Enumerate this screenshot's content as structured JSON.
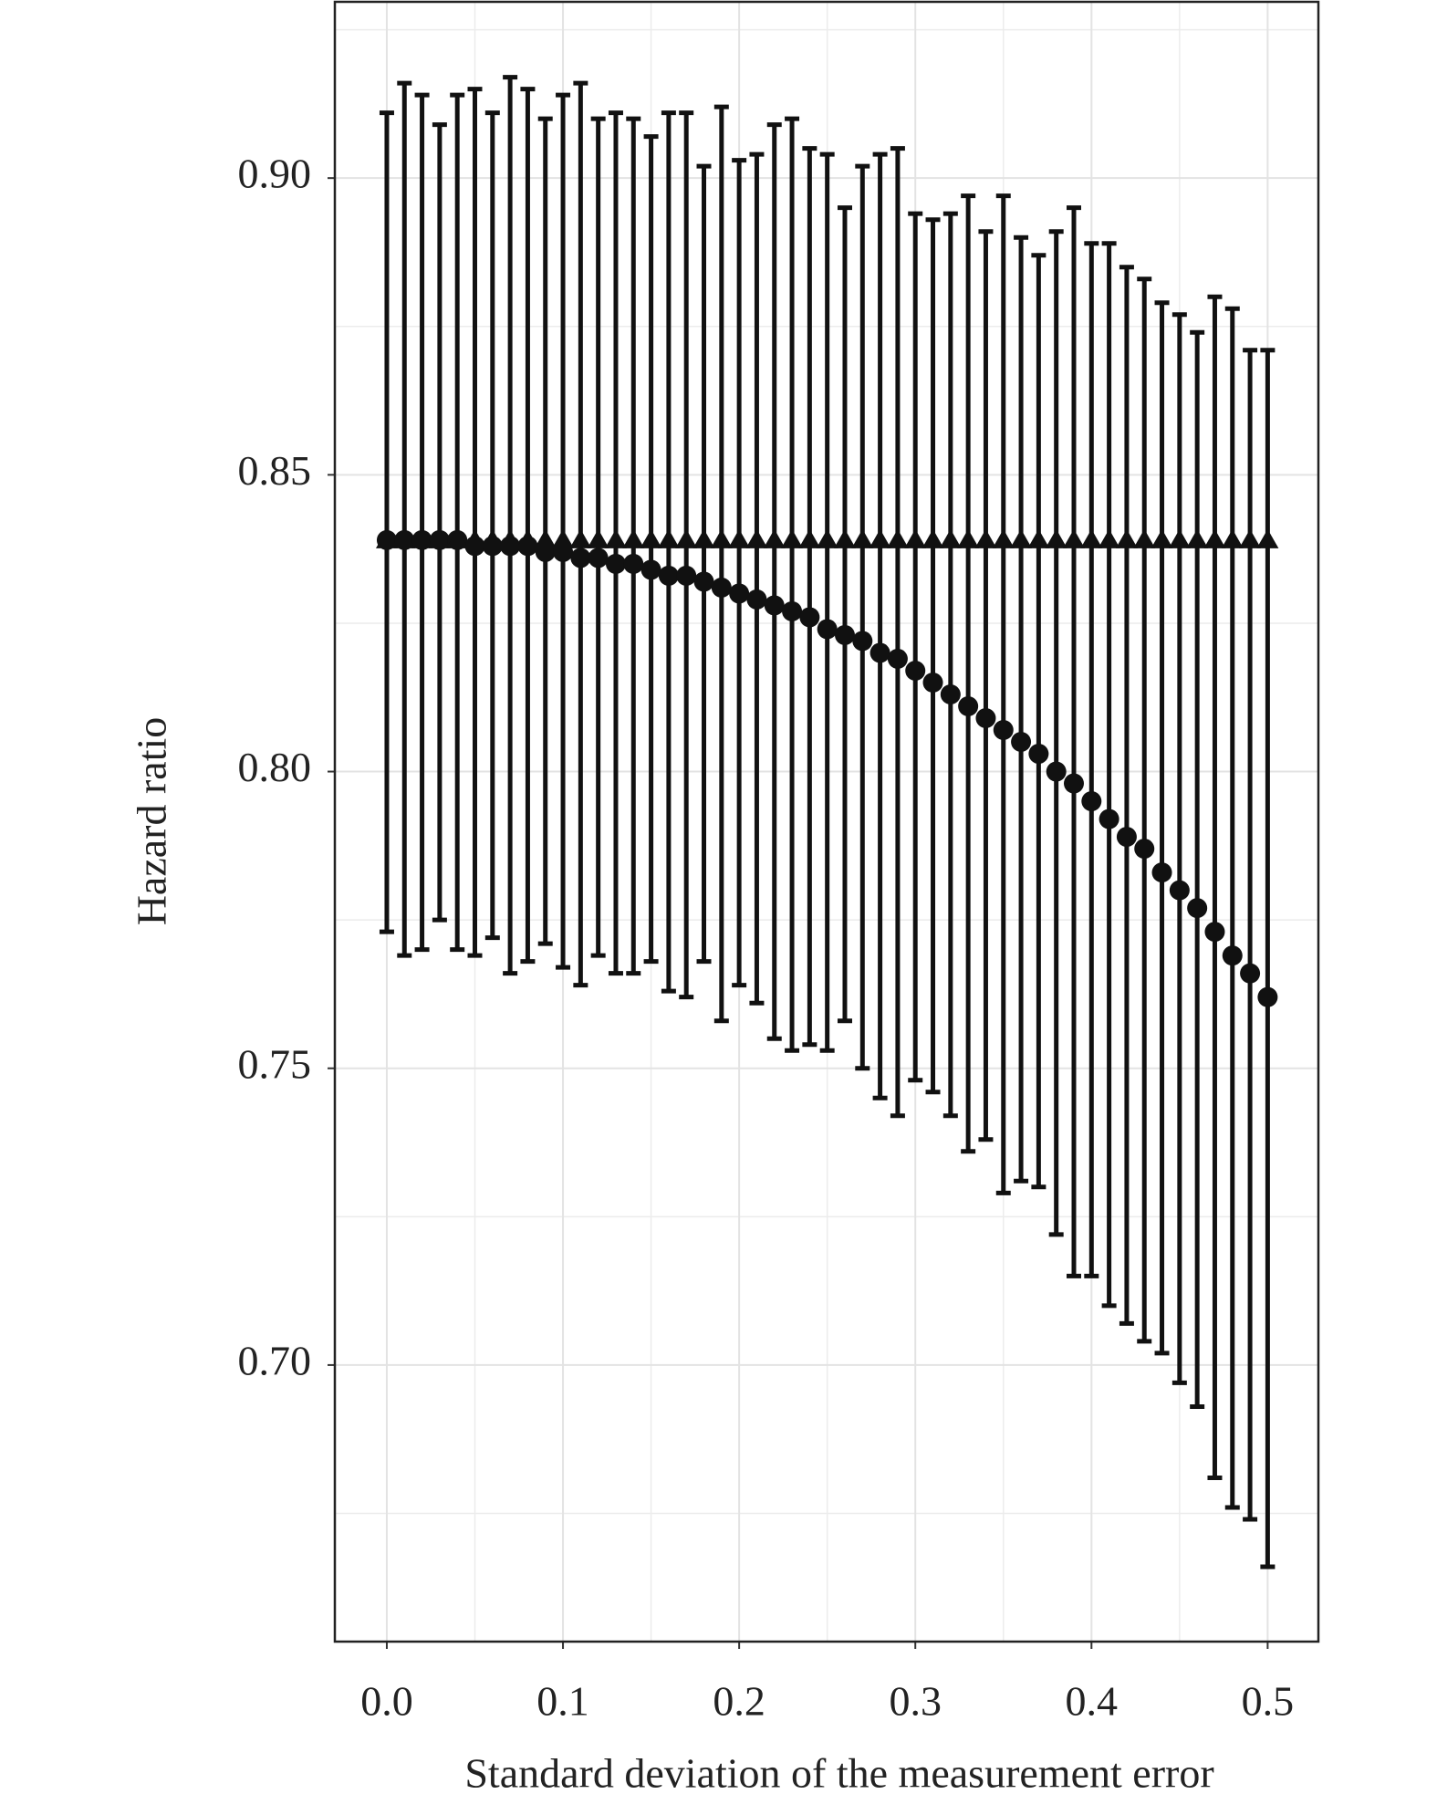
{
  "chart_data": {
    "type": "errorbar",
    "x_label": "Standard deviation of the measurement error",
    "y_label": "Hazard ratio",
    "x": [
      0,
      0.01,
      0.02,
      0.03,
      0.04,
      0.05,
      0.06,
      0.07,
      0.08,
      0.09,
      0.1,
      0.11,
      0.12,
      0.13,
      0.14,
      0.15,
      0.16,
      0.17,
      0.18,
      0.19,
      0.2,
      0.21,
      0.22,
      0.23,
      0.24,
      0.25,
      0.26,
      0.27,
      0.28,
      0.29,
      0.3,
      0.31,
      0.32,
      0.33,
      0.34,
      0.35,
      0.36,
      0.37,
      0.38,
      0.39,
      0.4,
      0.41,
      0.42,
      0.43,
      0.44,
      0.45,
      0.46,
      0.47,
      0.48,
      0.49,
      0.5
    ],
    "series": [
      {
        "marker": "circle",
        "color": "#111111",
        "values": [
          0.839,
          0.839,
          0.839,
          0.839,
          0.839,
          0.838,
          0.838,
          0.838,
          0.838,
          0.837,
          0.837,
          0.836,
          0.836,
          0.835,
          0.835,
          0.834,
          0.833,
          0.833,
          0.832,
          0.831,
          0.83,
          0.829,
          0.828,
          0.827,
          0.826,
          0.824,
          0.823,
          0.822,
          0.82,
          0.819,
          0.817,
          0.815,
          0.813,
          0.811,
          0.809,
          0.807,
          0.805,
          0.803,
          0.8,
          0.798,
          0.795,
          0.792,
          0.789,
          0.787,
          0.783,
          0.78,
          0.777,
          0.773,
          0.769,
          0.766,
          0.762
        ],
        "lower": [
          0.773,
          0.769,
          0.77,
          0.775,
          0.77,
          0.769,
          0.772,
          0.766,
          0.768,
          0.771,
          0.767,
          0.764,
          0.769,
          0.766,
          0.766,
          0.768,
          0.763,
          0.762,
          0.768,
          0.758,
          0.764,
          0.761,
          0.755,
          0.753,
          0.754,
          0.753,
          0.758,
          0.75,
          0.745,
          0.742,
          0.748,
          0.746,
          0.742,
          0.736,
          0.738,
          0.729,
          0.731,
          0.73,
          0.722,
          0.715,
          0.715,
          0.71,
          0.707,
          0.704,
          0.702,
          0.697,
          0.693,
          0.681,
          0.676,
          0.674,
          0.666
        ],
        "upper": [
          0.911,
          0.916,
          0.914,
          0.909,
          0.914,
          0.915,
          0.911,
          0.917,
          0.915,
          0.91,
          0.914,
          0.916,
          0.91,
          0.911,
          0.91,
          0.907,
          0.911,
          0.911,
          0.902,
          0.912,
          0.903,
          0.904,
          0.909,
          0.91,
          0.905,
          0.904,
          0.895,
          0.902,
          0.904,
          0.905,
          0.894,
          0.893,
          0.894,
          0.897,
          0.891,
          0.897,
          0.89,
          0.887,
          0.891,
          0.895,
          0.889,
          0.889,
          0.885,
          0.883,
          0.879,
          0.877,
          0.874,
          0.88,
          0.878,
          0.871,
          0.871
        ]
      },
      {
        "marker": "triangle",
        "color": "#111111",
        "values": [
          0.839,
          0.839,
          0.839,
          0.839,
          0.839,
          0.839,
          0.839,
          0.839,
          0.839,
          0.839,
          0.839,
          0.839,
          0.839,
          0.839,
          0.839,
          0.839,
          0.839,
          0.839,
          0.839,
          0.839,
          0.839,
          0.839,
          0.839,
          0.839,
          0.839,
          0.839,
          0.839,
          0.839,
          0.839,
          0.839,
          0.839,
          0.839,
          0.839,
          0.839,
          0.839,
          0.839,
          0.839,
          0.839,
          0.839,
          0.839,
          0.839,
          0.839,
          0.839,
          0.839,
          0.839,
          0.839,
          0.839,
          0.839,
          0.839,
          0.839,
          0.839
        ]
      }
    ],
    "xlim": [
      -0.0295,
      0.5288
    ],
    "xticks": [
      {
        "value": 0,
        "label": "0.0"
      },
      0.1,
      0.2,
      0.3,
      0.4,
      0.5
    ],
    "minor_xticks": [
      0.05,
      0.15,
      0.25,
      0.35,
      0.45
    ],
    "ylim": [
      0.6534,
      0.9297
    ],
    "yticks": [
      {
        "value": 0.7,
        "label": "0.70"
      },
      0.75,
      {
        "value": 0.8,
        "label": "0.80"
      },
      0.85,
      {
        "value": 0.9,
        "label": "0.90"
      }
    ],
    "minor_yticks": [
      0.675,
      0.725,
      0.775,
      0.825,
      0.875,
      0.925
    ],
    "grid": true
  }
}
